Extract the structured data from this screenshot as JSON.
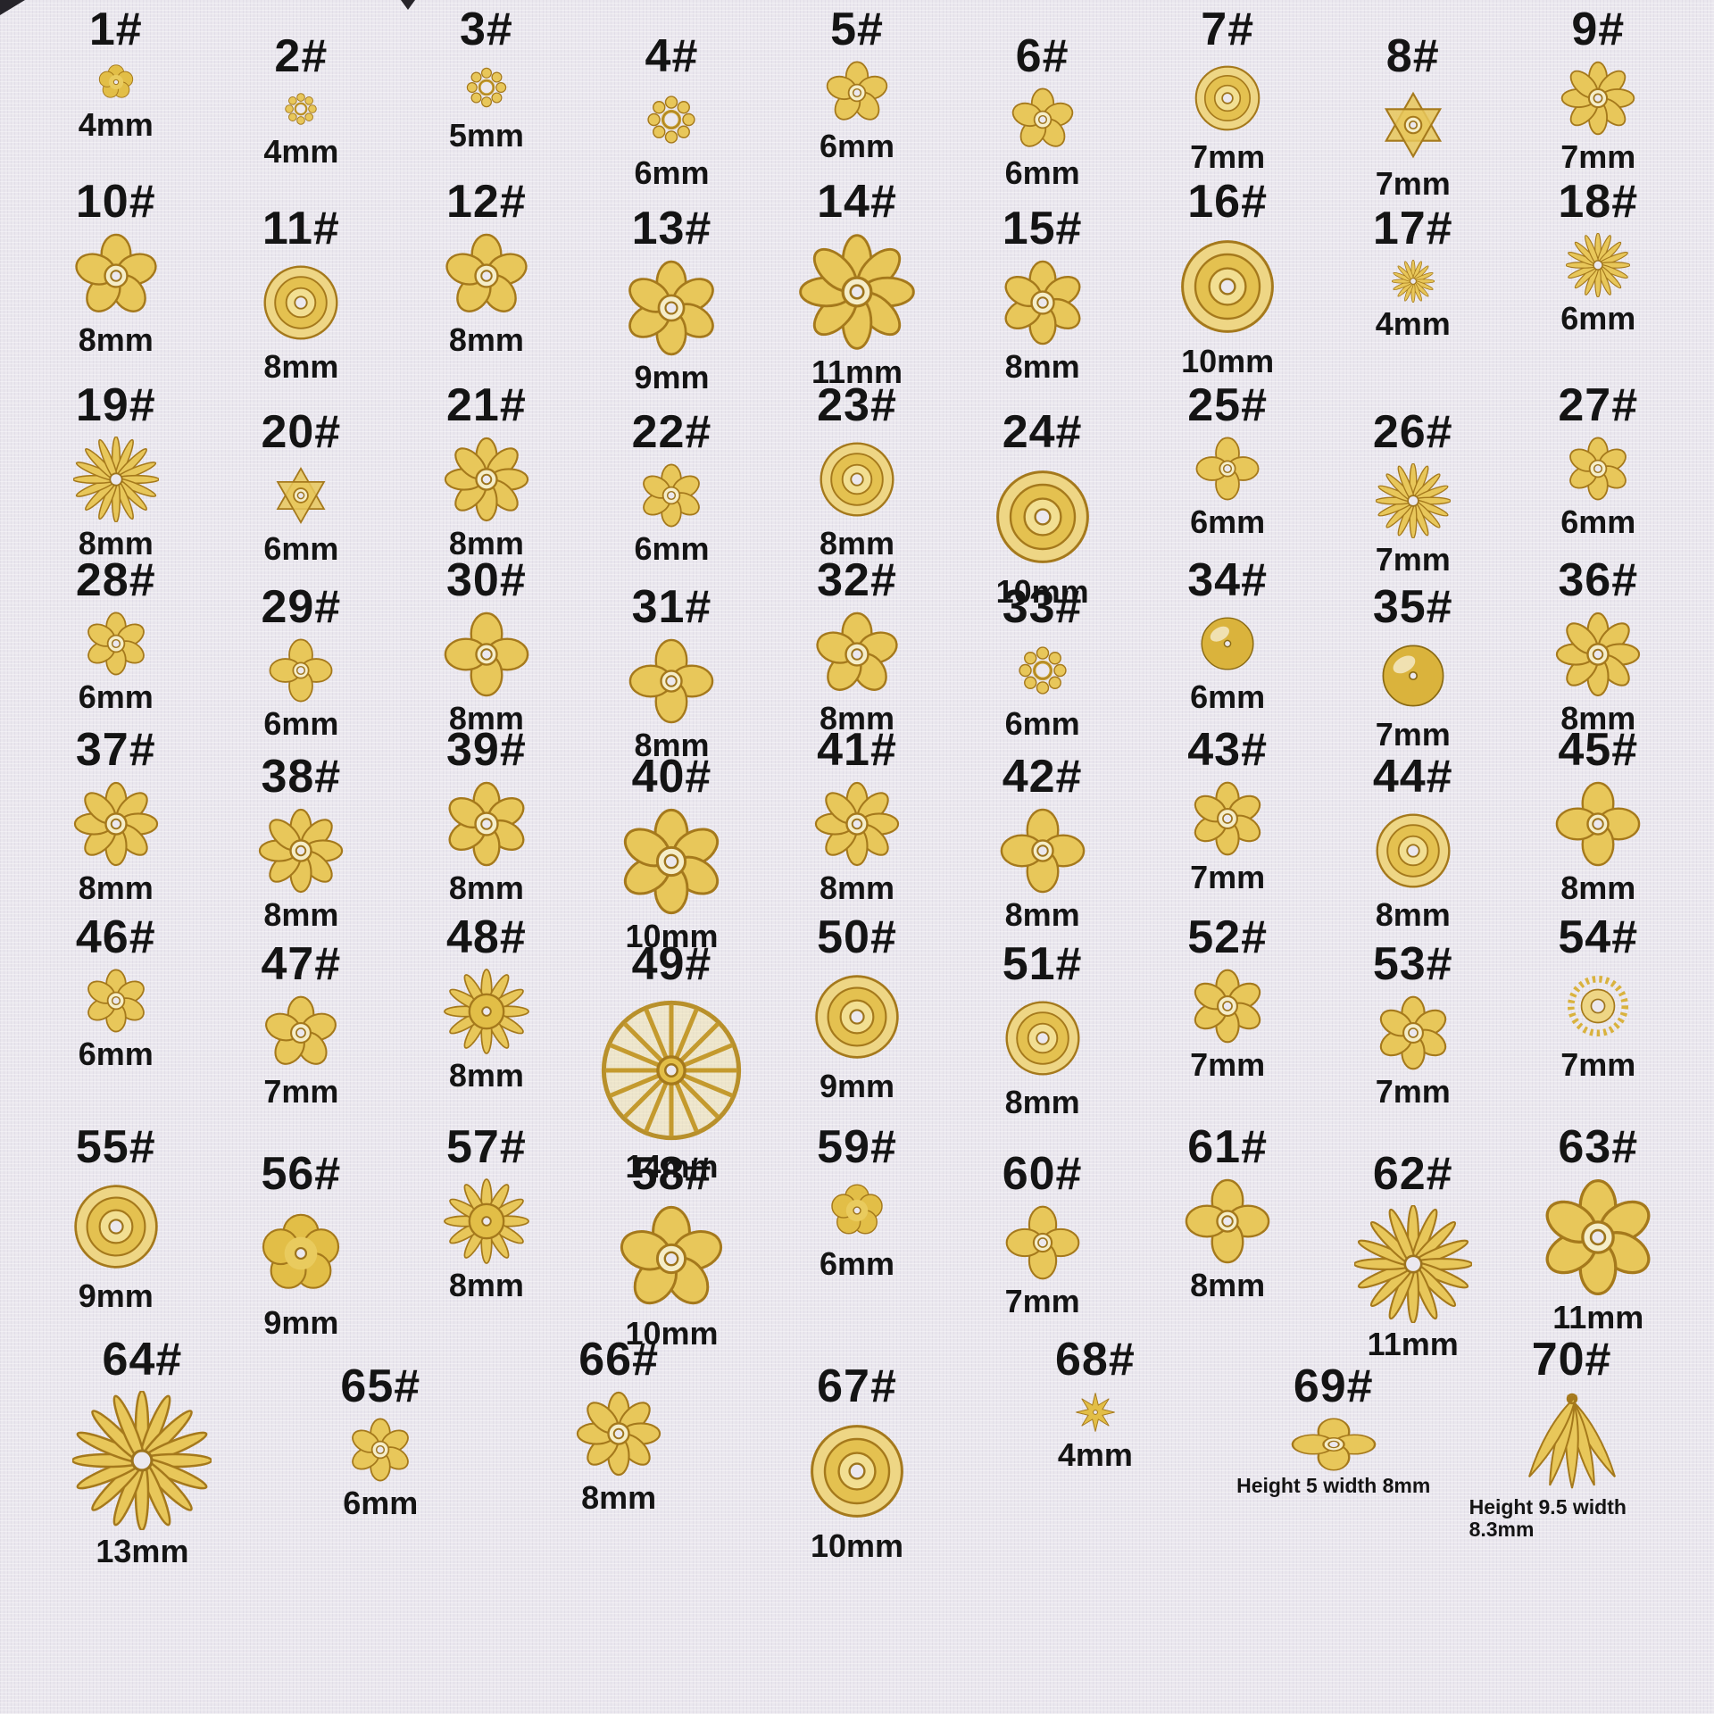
{
  "style": {
    "background": "#eae7ee",
    "text_color": "#141414",
    "gold_base": "#e8c75a",
    "gold_dark": "#a5791c",
    "gold_deep": "#8a6a14",
    "gold_light": "#f5edc8"
  },
  "catalog": {
    "rows": [
      {
        "items": [
          {
            "n": "1#",
            "size": "4mm",
            "mm": 4,
            "shape": "solid5"
          },
          {
            "n": "2#",
            "size": "4mm",
            "mm": 4,
            "shape": "beadring"
          },
          {
            "n": "3#",
            "size": "5mm",
            "mm": 5,
            "shape": "beadring"
          },
          {
            "n": "4#",
            "size": "6mm",
            "mm": 6,
            "shape": "beadring"
          },
          {
            "n": "5#",
            "size": "6mm",
            "mm": 6,
            "shape": "f5"
          },
          {
            "n": "6#",
            "size": "6mm",
            "mm": 6,
            "shape": "f5"
          },
          {
            "n": "7#",
            "size": "7mm",
            "mm": 7,
            "shape": "rose"
          },
          {
            "n": "8#",
            "size": "7mm",
            "mm": 7,
            "shape": "star6"
          },
          {
            "n": "9#",
            "size": "7mm",
            "mm": 7,
            "shape": "f8"
          }
        ]
      },
      {
        "items": [
          {
            "n": "10#",
            "size": "8mm",
            "mm": 8,
            "shape": "f5"
          },
          {
            "n": "11#",
            "size": "8mm",
            "mm": 8,
            "shape": "rose"
          },
          {
            "n": "12#",
            "size": "8mm",
            "mm": 8,
            "shape": "f5"
          },
          {
            "n": "13#",
            "size": "9mm",
            "mm": 9,
            "shape": "f6"
          },
          {
            "n": "14#",
            "size": "11mm",
            "mm": 11,
            "shape": "f8"
          },
          {
            "n": "15#",
            "size": "8mm",
            "mm": 8,
            "shape": "f6"
          },
          {
            "n": "16#",
            "size": "10mm",
            "mm": 10,
            "shape": "rose"
          },
          {
            "n": "17#",
            "size": "4mm",
            "mm": 4,
            "shape": "daisy"
          },
          {
            "n": "18#",
            "size": "6mm",
            "mm": 6,
            "shape": "daisy"
          }
        ]
      },
      {
        "items": [
          {
            "n": "19#",
            "size": "8mm",
            "mm": 8,
            "shape": "daisy"
          },
          {
            "n": "20#",
            "size": "6mm",
            "mm": 6,
            "shape": "star6"
          },
          {
            "n": "21#",
            "size": "8mm",
            "mm": 8,
            "shape": "f8"
          },
          {
            "n": "22#",
            "size": "6mm",
            "mm": 6,
            "shape": "f6"
          },
          {
            "n": "23#",
            "size": "8mm",
            "mm": 8,
            "shape": "rose"
          },
          {
            "n": "24#",
            "size": "10mm",
            "mm": 10,
            "shape": "rose"
          },
          {
            "n": "25#",
            "size": "6mm",
            "mm": 6,
            "shape": "cross4"
          },
          {
            "n": "26#",
            "size": "7mm",
            "mm": 7,
            "shape": "daisy"
          },
          {
            "n": "27#",
            "size": "6mm",
            "mm": 6,
            "shape": "f6"
          }
        ]
      },
      {
        "items": [
          {
            "n": "28#",
            "size": "6mm",
            "mm": 6,
            "shape": "f6"
          },
          {
            "n": "29#",
            "size": "6mm",
            "mm": 6,
            "shape": "cross4"
          },
          {
            "n": "30#",
            "size": "8mm",
            "mm": 8,
            "shape": "cross4"
          },
          {
            "n": "31#",
            "size": "8mm",
            "mm": 8,
            "shape": "cross4"
          },
          {
            "n": "32#",
            "size": "8mm",
            "mm": 8,
            "shape": "f5"
          },
          {
            "n": "33#",
            "size": "6mm",
            "mm": 6,
            "shape": "beadring"
          },
          {
            "n": "34#",
            "size": "6mm",
            "mm": 6,
            "shape": "bead"
          },
          {
            "n": "35#",
            "size": "7mm",
            "mm": 7,
            "shape": "bead"
          },
          {
            "n": "36#",
            "size": "8mm",
            "mm": 8,
            "shape": "f8"
          }
        ]
      },
      {
        "items": [
          {
            "n": "37#",
            "size": "8mm",
            "mm": 8,
            "shape": "f8"
          },
          {
            "n": "38#",
            "size": "8mm",
            "mm": 8,
            "shape": "f8"
          },
          {
            "n": "39#",
            "size": "8mm",
            "mm": 8,
            "shape": "f6"
          },
          {
            "n": "40#",
            "size": "10mm",
            "mm": 10,
            "shape": "f6"
          },
          {
            "n": "41#",
            "size": "8mm",
            "mm": 8,
            "shape": "f8"
          },
          {
            "n": "42#",
            "size": "8mm",
            "mm": 8,
            "shape": "cross4"
          },
          {
            "n": "43#",
            "size": "7mm",
            "mm": 7,
            "shape": "f6"
          },
          {
            "n": "44#",
            "size": "8mm",
            "mm": 8,
            "shape": "rose"
          },
          {
            "n": "45#",
            "size": "8mm",
            "mm": 8,
            "shape": "cross4"
          }
        ]
      },
      {
        "items": [
          {
            "n": "46#",
            "size": "6mm",
            "mm": 6,
            "shape": "f6"
          },
          {
            "n": "47#",
            "size": "7mm",
            "mm": 7,
            "shape": "f5"
          },
          {
            "n": "48#",
            "size": "8mm",
            "mm": 8,
            "shape": "sunflower"
          },
          {
            "n": "49#",
            "size": "14mm",
            "mm": 14,
            "shape": "wheel"
          },
          {
            "n": "50#",
            "size": "9mm",
            "mm": 9,
            "shape": "rose"
          },
          {
            "n": "51#",
            "size": "8mm",
            "mm": 8,
            "shape": "rose"
          },
          {
            "n": "52#",
            "size": "7mm",
            "mm": 7,
            "shape": "f6"
          },
          {
            "n": "53#",
            "size": "7mm",
            "mm": 7,
            "shape": "f6"
          },
          {
            "n": "54#",
            "size": "7mm",
            "mm": 7,
            "shape": "sunburst"
          }
        ]
      },
      {
        "items": [
          {
            "n": "55#",
            "size": "9mm",
            "mm": 9,
            "shape": "rose"
          },
          {
            "n": "56#",
            "size": "9mm",
            "mm": 9,
            "shape": "solid5"
          },
          {
            "n": "57#",
            "size": "8mm",
            "mm": 8,
            "shape": "sunflower"
          },
          {
            "n": "58#",
            "size": "10mm",
            "mm": 10,
            "shape": "f5"
          },
          {
            "n": "59#",
            "size": "6mm",
            "mm": 6,
            "shape": "solid5"
          },
          {
            "n": "60#",
            "size": "7mm",
            "mm": 7,
            "shape": "cross4"
          },
          {
            "n": "61#",
            "size": "8mm",
            "mm": 8,
            "shape": "cross4"
          },
          {
            "n": "62#",
            "size": "11mm",
            "mm": 11,
            "shape": "daisy"
          },
          {
            "n": "63#",
            "size": "11mm",
            "mm": 11,
            "shape": "f6"
          }
        ]
      },
      {
        "items": [
          {
            "n": "64#",
            "size": "13mm",
            "mm": 13,
            "shape": "daisy"
          },
          {
            "n": "65#",
            "size": "6mm",
            "mm": 6,
            "shape": "f6"
          },
          {
            "n": "66#",
            "size": "8mm",
            "mm": 8,
            "shape": "f8"
          },
          {
            "n": "67#",
            "size": "10mm",
            "mm": 10,
            "shape": "rose"
          },
          {
            "n": "68#",
            "size": "4mm",
            "mm": 4,
            "shape": "star8"
          },
          {
            "n": "69#",
            "size": "Height 5 width 8mm",
            "mm": 8,
            "mmh": 5,
            "shape": "cross4",
            "small_label": true
          },
          {
            "n": "70#",
            "size": "Height 9.5 width 8.3mm",
            "mm": 8.3,
            "mmh": 9.5,
            "shape": "tassel",
            "small_label": true
          }
        ]
      }
    ]
  }
}
